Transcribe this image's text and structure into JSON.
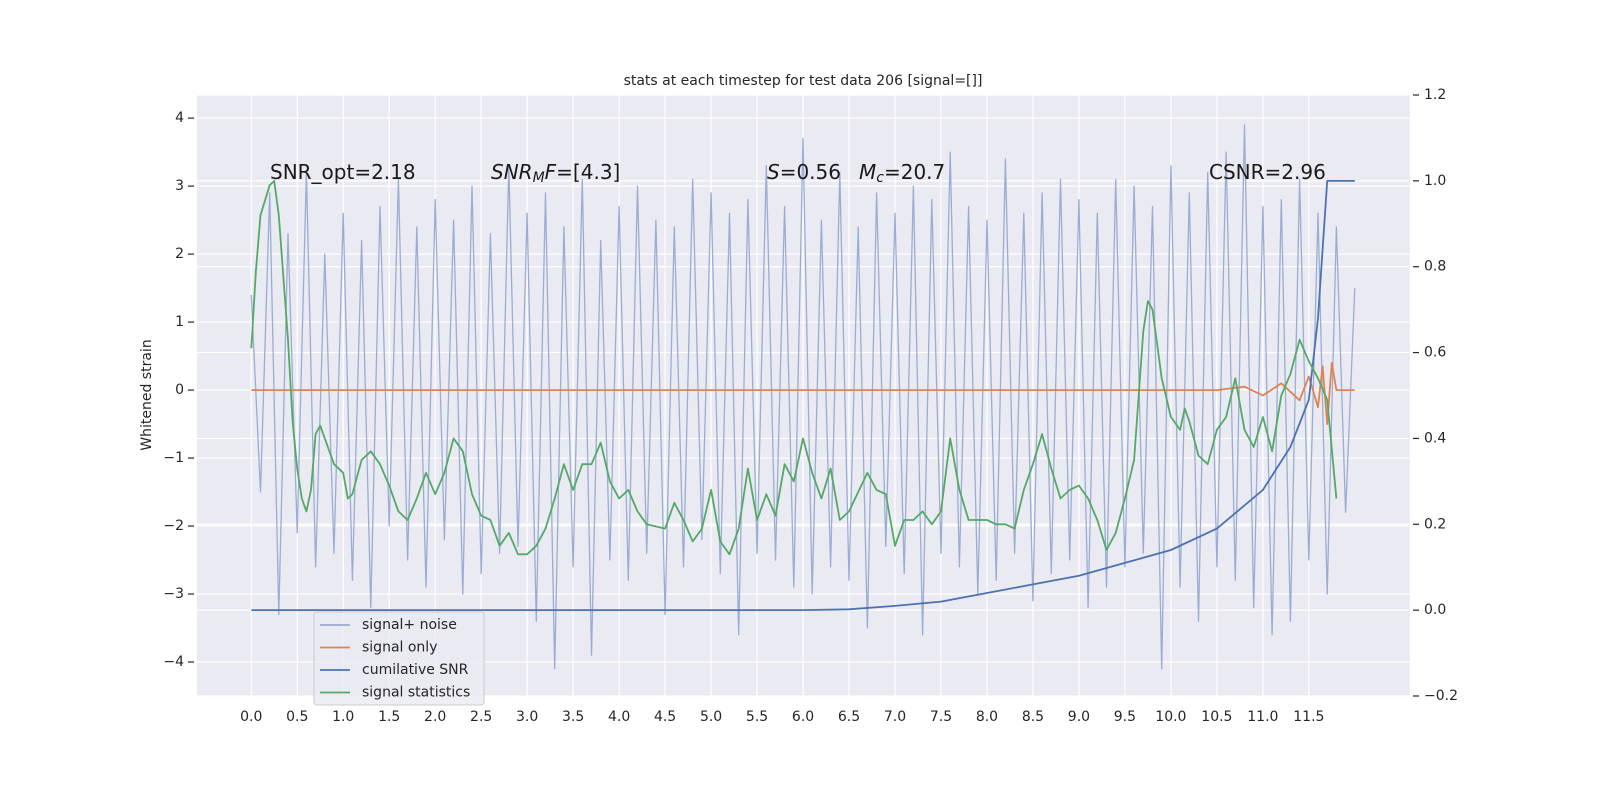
{
  "chart_data": {
    "type": "line",
    "title": "stats at each timestep for test data 206 [signal=[]]",
    "ylabel": "Whitened strain",
    "xlim": [
      -0.59,
      12.6
    ],
    "ylim": [
      -4.5,
      4.34
    ],
    "y2lim": [
      -0.2,
      1.2
    ],
    "xticks": [
      {
        "value": 0,
        "label": "0.0"
      },
      0.5,
      {
        "value": 1,
        "label": "1.0"
      },
      1.5,
      {
        "value": 2,
        "label": "2.0"
      },
      2.5,
      {
        "value": 3,
        "label": "3.0"
      },
      3.5,
      {
        "value": 4,
        "label": "4.0"
      },
      4.5,
      {
        "value": 5,
        "label": "5.0"
      },
      5.5,
      {
        "value": 6,
        "label": "6.0"
      },
      6.5,
      {
        "value": 7,
        "label": "7.0"
      },
      7.5,
      {
        "value": 8,
        "label": "8.0"
      },
      8.5,
      {
        "value": 9,
        "label": "9.0"
      },
      9.5,
      {
        "value": 10,
        "label": "10.0"
      },
      10.5,
      {
        "value": 11,
        "label": "11.0"
      },
      11.5
    ],
    "yticks": [
      {
        "value": -4,
        "label": "−4"
      },
      {
        "value": -3,
        "label": "−3"
      },
      {
        "value": -2,
        "label": "−2"
      },
      {
        "value": -1,
        "label": "−1"
      },
      0,
      1,
      2,
      3,
      4
    ],
    "y2ticks": [
      {
        "value": -0.2,
        "label": "−0.2"
      },
      {
        "value": 0,
        "label": "0.0"
      },
      0.2,
      0.4,
      0.6,
      0.8,
      {
        "value": 1,
        "label": "1.0"
      },
      1.2
    ],
    "grid": true,
    "legend": "lower left",
    "annotations": [
      [
        {
          "text": "SNR_opt=2.18"
        }
      ],
      [
        {
          "text": "SNR",
          "italic": true
        },
        {
          "text": "M",
          "italic": true,
          "sub": true
        },
        {
          "text": "F",
          "italic": true
        },
        {
          "text": "=[4.3]"
        }
      ],
      [
        {
          "text": "S",
          "italic": true
        },
        {
          "text": "=0.56"
        }
      ],
      [
        {
          "text": "M",
          "italic": true
        },
        {
          "text": "c",
          "italic": true,
          "sub": true
        },
        {
          "text": "=20.7"
        }
      ],
      [
        {
          "text": "CSNR=2.96"
        }
      ]
    ],
    "series": [
      {
        "name": "signal+ noise",
        "color": "#9badd2",
        "x": [
          0,
          0.1,
          0.2,
          0.3,
          0.4,
          0.5,
          0.6,
          0.7,
          0.8,
          0.9,
          1,
          1.1,
          1.2,
          1.3,
          1.4,
          1.5,
          1.6,
          1.7,
          1.8,
          1.9,
          2,
          2.1,
          2.2,
          2.3,
          2.4,
          2.5,
          2.6,
          2.7,
          2.8,
          2.9,
          3,
          3.1,
          3.2,
          3.3,
          3.4,
          3.5,
          3.6,
          3.7,
          3.8,
          3.9,
          4,
          4.1,
          4.2,
          4.3,
          4.4,
          4.5,
          4.6,
          4.7,
          4.8,
          4.9,
          5,
          5.1,
          5.2,
          5.3,
          5.4,
          5.5,
          5.6,
          5.7,
          5.8,
          5.9,
          6,
          6.1,
          6.2,
          6.3,
          6.4,
          6.5,
          6.6,
          6.7,
          6.8,
          6.9,
          7,
          7.1,
          7.2,
          7.3,
          7.4,
          7.5,
          7.6,
          7.7,
          7.8,
          7.9,
          8,
          8.1,
          8.2,
          8.3,
          8.4,
          8.5,
          8.6,
          8.7,
          8.8,
          8.9,
          9,
          9.1,
          9.2,
          9.3,
          9.4,
          9.5,
          9.6,
          9.7,
          9.8,
          9.9,
          10,
          10.1,
          10.2,
          10.3,
          10.4,
          10.5,
          10.6,
          10.7,
          10.8,
          10.9,
          11,
          11.1,
          11.2,
          11.3,
          11.4,
          11.5,
          11.6,
          11.7,
          11.8,
          11.9,
          12
        ],
        "values": [
          1.4,
          -1.5,
          2.9,
          -3.3,
          2.3,
          -2.1,
          3.2,
          -2.6,
          2.0,
          -2.4,
          2.6,
          -2.8,
          2.2,
          -3.2,
          2.7,
          -2.0,
          3.1,
          -2.5,
          2.4,
          -2.9,
          2.8,
          -2.2,
          2.5,
          -3.0,
          3.0,
          -2.7,
          2.3,
          -2.4,
          3.3,
          -2.3,
          2.6,
          -3.4,
          2.9,
          -4.1,
          2.4,
          -2.6,
          3.1,
          -3.9,
          2.2,
          -2.5,
          2.7,
          -2.8,
          3.0,
          -2.4,
          2.5,
          -3.3,
          2.4,
          -2.6,
          3.1,
          -2.2,
          2.9,
          -2.7,
          2.6,
          -3.6,
          2.8,
          -2.4,
          3.3,
          -2.5,
          2.7,
          -2.9,
          3.7,
          -3.0,
          2.5,
          -2.6,
          3.2,
          -2.8,
          2.4,
          -3.5,
          2.9,
          -2.3,
          2.6,
          -2.7,
          3.0,
          -3.6,
          2.8,
          -2.4,
          3.5,
          -2.6,
          2.7,
          -3.0,
          2.5,
          -2.8,
          3.4,
          -2.4,
          2.6,
          -3.1,
          2.9,
          -2.7,
          3.1,
          -2.5,
          2.8,
          -3.2,
          2.6,
          -2.9,
          3.1,
          -2.6,
          3.0,
          -2.4,
          2.7,
          -4.1,
          3.3,
          -2.9,
          2.9,
          -3.4,
          3.2,
          -2.6,
          3.5,
          -2.8,
          3.9,
          -3.2,
          2.7,
          -3.6,
          2.8,
          -3.4,
          3.1,
          -2.5,
          2.6,
          -3.0,
          2.4,
          -1.8,
          1.5
        ]
      },
      {
        "name": "signal only",
        "color": "#dd8452",
        "x": [
          0,
          10.5,
          10.8,
          11.0,
          11.2,
          11.4,
          11.5,
          11.6,
          11.65,
          11.7,
          11.75,
          11.8,
          12.0
        ],
        "values": [
          0,
          0,
          0.05,
          -0.08,
          0.1,
          -0.15,
          0.2,
          -0.25,
          0.35,
          -0.5,
          0.4,
          0,
          0
        ]
      },
      {
        "name": "cumilative SNR",
        "color": "#4c72b0",
        "axis": "y2",
        "x": [
          0,
          6.0,
          6.5,
          7.0,
          7.5,
          8.0,
          8.5,
          9.0,
          9.5,
          10.0,
          10.5,
          11.0,
          11.3,
          11.5,
          11.6,
          11.65,
          11.7,
          12.0
        ],
        "values": [
          0,
          0,
          0.002,
          0.01,
          0.02,
          0.04,
          0.06,
          0.08,
          0.11,
          0.14,
          0.19,
          0.28,
          0.38,
          0.49,
          0.68,
          0.84,
          1.0,
          1.0
        ]
      },
      {
        "name": "signal statistics",
        "color": "#55a868",
        "axis": "y2",
        "x": [
          0,
          0.05,
          0.1,
          0.2,
          0.25,
          0.3,
          0.4,
          0.45,
          0.5,
          0.55,
          0.6,
          0.65,
          0.7,
          0.75,
          0.8,
          0.9,
          1.0,
          1.05,
          1.1,
          1.2,
          1.3,
          1.4,
          1.5,
          1.6,
          1.7,
          1.8,
          1.9,
          2.0,
          2.1,
          2.2,
          2.3,
          2.4,
          2.5,
          2.6,
          2.7,
          2.8,
          2.9,
          3.0,
          3.1,
          3.2,
          3.3,
          3.4,
          3.5,
          3.6,
          3.7,
          3.8,
          3.9,
          4.0,
          4.1,
          4.2,
          4.3,
          4.5,
          4.6,
          4.7,
          4.8,
          4.9,
          5.0,
          5.1,
          5.2,
          5.3,
          5.4,
          5.5,
          5.6,
          5.7,
          5.8,
          5.9,
          6.0,
          6.1,
          6.2,
          6.3,
          6.4,
          6.5,
          6.7,
          6.8,
          6.9,
          7.0,
          7.1,
          7.2,
          7.3,
          7.4,
          7.5,
          7.6,
          7.7,
          7.8,
          7.9,
          8.0,
          8.1,
          8.2,
          8.3,
          8.4,
          8.5,
          8.6,
          8.7,
          8.8,
          8.9,
          9.0,
          9.1,
          9.2,
          9.3,
          9.4,
          9.5,
          9.6,
          9.7,
          9.75,
          9.8,
          9.9,
          10.0,
          10.1,
          10.15,
          10.2,
          10.3,
          10.4,
          10.5,
          10.6,
          10.7,
          10.8,
          10.9,
          11.0,
          11.1,
          11.2,
          11.3,
          11.4,
          11.5,
          11.6,
          11.7,
          11.8
        ],
        "values": [
          0.61,
          0.79,
          0.92,
          0.99,
          1.0,
          0.92,
          0.63,
          0.44,
          0.33,
          0.26,
          0.23,
          0.28,
          0.41,
          0.43,
          0.4,
          0.34,
          0.32,
          0.26,
          0.27,
          0.35,
          0.37,
          0.34,
          0.29,
          0.23,
          0.21,
          0.26,
          0.32,
          0.27,
          0.32,
          0.4,
          0.37,
          0.27,
          0.22,
          0.21,
          0.15,
          0.18,
          0.13,
          0.13,
          0.15,
          0.19,
          0.26,
          0.34,
          0.28,
          0.34,
          0.34,
          0.39,
          0.3,
          0.26,
          0.28,
          0.23,
          0.2,
          0.19,
          0.25,
          0.21,
          0.16,
          0.19,
          0.28,
          0.16,
          0.13,
          0.19,
          0.33,
          0.21,
          0.27,
          0.22,
          0.34,
          0.3,
          0.4,
          0.32,
          0.26,
          0.33,
          0.21,
          0.23,
          0.32,
          0.28,
          0.27,
          0.15,
          0.21,
          0.21,
          0.23,
          0.2,
          0.23,
          0.4,
          0.28,
          0.21,
          0.21,
          0.21,
          0.2,
          0.2,
          0.19,
          0.28,
          0.34,
          0.41,
          0.33,
          0.26,
          0.28,
          0.29,
          0.26,
          0.21,
          0.14,
          0.18,
          0.26,
          0.35,
          0.65,
          0.72,
          0.7,
          0.54,
          0.45,
          0.42,
          0.47,
          0.44,
          0.36,
          0.34,
          0.42,
          0.45,
          0.54,
          0.42,
          0.38,
          0.45,
          0.37,
          0.5,
          0.55,
          0.63,
          0.58,
          0.54,
          0.49,
          0.26
        ]
      }
    ]
  }
}
